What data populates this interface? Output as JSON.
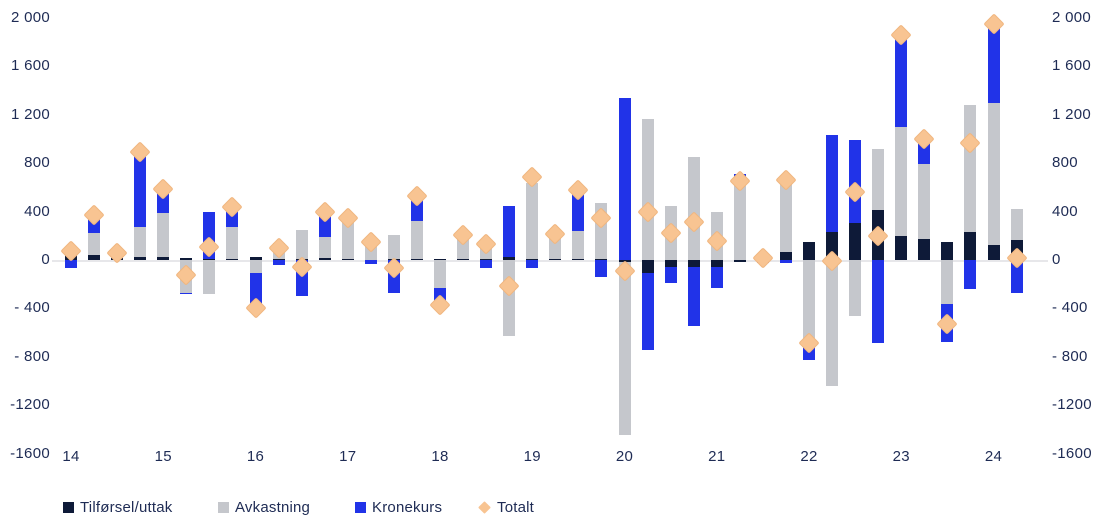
{
  "colors": {
    "tilforsel": "#0E1A38",
    "avkastning": "#C5C7CC",
    "kronekurs": "#2133E8",
    "totalt": "#F8C492",
    "axis_text": "#1E2B54",
    "zero_line": "#E7E7EA"
  },
  "legend": {
    "items": [
      {
        "label": "Tilførsel/uttak",
        "swatch": "square",
        "color": "#0E1A38"
      },
      {
        "label": "Avkastning",
        "swatch": "square",
        "color": "#C5C7CC"
      },
      {
        "label": "Kronekurs",
        "swatch": "square",
        "color": "#2133E8"
      },
      {
        "label": "Totalt",
        "swatch": "diamond",
        "color": "#F8C492"
      }
    ]
  },
  "y_axis": {
    "ticks": [
      {
        "label": "2 000",
        "value": 2000
      },
      {
        "label": "1 600",
        "value": 1600
      },
      {
        "label": "1 200",
        "value": 1200
      },
      {
        "label": "800",
        "value": 800
      },
      {
        "label": "400",
        "value": 400
      },
      {
        "label": "0",
        "value": 0
      },
      {
        "label": "- 400",
        "value": -400
      },
      {
        "label": "- 800",
        "value": -800
      },
      {
        "label": "-1200",
        "value": -1200
      },
      {
        "label": "-1600",
        "value": -1600
      }
    ]
  },
  "x_axis": {
    "year_labels": [
      "14",
      "15",
      "16",
      "17",
      "18",
      "19",
      "20",
      "21",
      "22",
      "23",
      "24"
    ]
  },
  "chart_data": {
    "type": "bar",
    "subtype": "stacked-bars-with-total-markers",
    "unit": "quarterly values, axis -1600 to 2000",
    "ylim": [
      -1600,
      2000
    ],
    "grid": "zero-line-only",
    "legend_position": "bottom",
    "categories": [
      "14Q1",
      "14Q2",
      "14Q3",
      "14Q4",
      "15Q1",
      "15Q2",
      "15Q3",
      "15Q4",
      "16Q1",
      "16Q2",
      "16Q3",
      "16Q4",
      "17Q1",
      "17Q2",
      "17Q3",
      "17Q4",
      "18Q1",
      "18Q2",
      "18Q3",
      "18Q4",
      "19Q1",
      "19Q2",
      "19Q3",
      "19Q4",
      "20Q1",
      "20Q2",
      "20Q3",
      "20Q4",
      "21Q1",
      "21Q2",
      "21Q3",
      "21Q4",
      "22Q1",
      "22Q2",
      "22Q3",
      "22Q4",
      "23Q1",
      "23Q2",
      "23Q3",
      "23Q4",
      "24Q1",
      "24Q2"
    ],
    "series": [
      {
        "name": "Tilførsel/uttak",
        "render": "stacked-bar",
        "color": "#0E1A38",
        "values": [
          40,
          45,
          15,
          25,
          25,
          20,
          10,
          10,
          25,
          10,
          10,
          15,
          10,
          0,
          5,
          10,
          10,
          5,
          5,
          25,
          10,
          5,
          10,
          10,
          -15,
          -110,
          -55,
          -60,
          -55,
          -15,
          25,
          65,
          145,
          230,
          305,
          410,
          195,
          170,
          150,
          235,
          125,
          165
        ]
      },
      {
        "name": "Avkastning",
        "render": "stacked-bar",
        "color": "#C5C7CC",
        "values": [
          70,
          175,
          30,
          245,
          360,
          -270,
          -285,
          260,
          -110,
          130,
          240,
          175,
          315,
          180,
          200,
          315,
          -230,
          170,
          125,
          -630,
          630,
          175,
          230,
          460,
          -1430,
          1165,
          445,
          850,
          400,
          630,
          10,
          605,
          -675,
          -1040,
          -465,
          510,
          905,
          620,
          -365,
          1050,
          1170,
          255
        ]
      },
      {
        "name": "Kronekurs",
        "render": "stacked-bar",
        "color": "#2133E8",
        "values": [
          -70,
          150,
          10,
          620,
          200,
          -10,
          385,
          175,
          -260,
          -40,
          -295,
          195,
          30,
          -35,
          -270,
          200,
          -150,
          40,
          -65,
          420,
          -65,
          35,
          320,
          -140,
          1340,
          -630,
          -135,
          -485,
          -180,
          80,
          -25,
          -25,
          -155,
          805,
          690,
          -690,
          780,
          245,
          -315,
          -240,
          650,
          -270
        ]
      },
      {
        "name": "Totalt",
        "render": "diamond-marker",
        "color": "#F8C492",
        "values": [
          75,
          370,
          55,
          890,
          585,
          -120,
          110,
          435,
          -400,
          100,
          -55,
          400,
          350,
          150,
          -65,
          530,
          -370,
          205,
          135,
          -215,
          690,
          215,
          580,
          350,
          -90,
          400,
          220,
          310,
          160,
          655,
          15,
          660,
          -690,
          -5,
          560,
          200,
          1860,
          1000,
          -530,
          965,
          1950,
          20
        ]
      }
    ]
  },
  "layout_note": "zero line y=260, 400 units = 48.4 px, first bar center x=71, bar pitch 23.06 px"
}
